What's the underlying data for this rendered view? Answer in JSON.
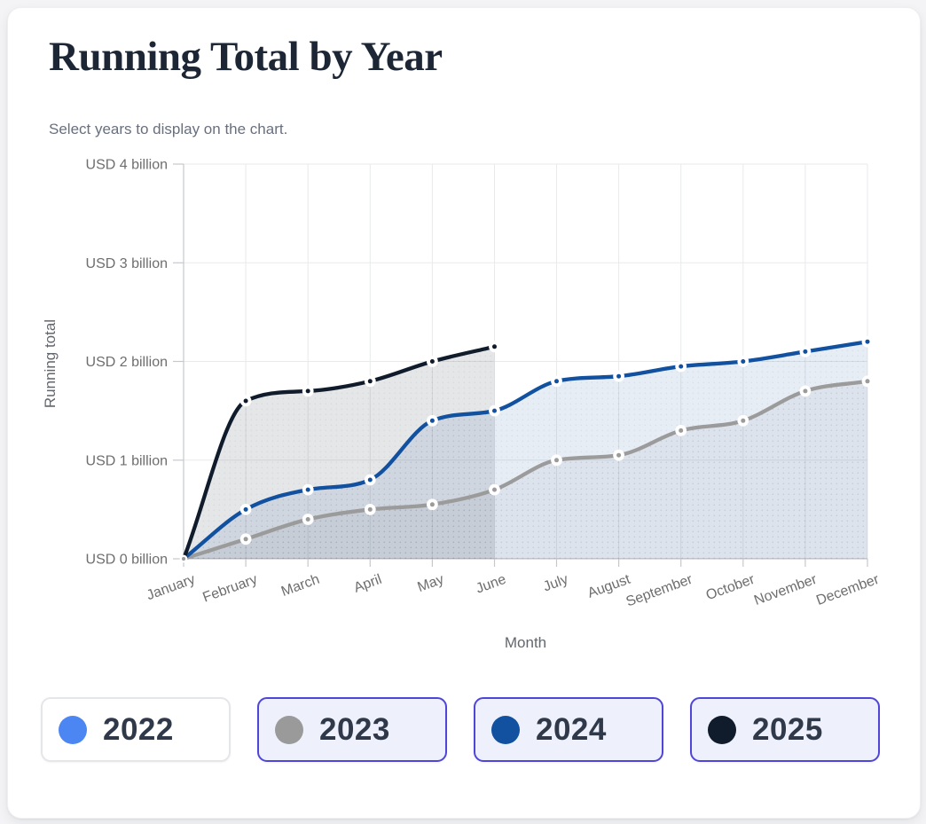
{
  "header": {
    "title": "Running Total by Year",
    "subtitle": "Select years to display on the chart."
  },
  "chart_data": {
    "type": "area",
    "title": "Running Total by Year",
    "x": [
      "January",
      "February",
      "March",
      "April",
      "May",
      "June",
      "July",
      "August",
      "September",
      "October",
      "November",
      "December"
    ],
    "xlabel": "Month",
    "ylabel": "Running total",
    "ylim": [
      0,
      4
    ],
    "yticks": [
      0,
      1,
      2,
      3,
      4
    ],
    "ytick_labels": [
      "USD 0 billion",
      "USD 1 billion",
      "USD 2 billion",
      "USD 3 billion",
      "USD 4 billion"
    ],
    "grid": true,
    "legend_position": "bottom",
    "series": [
      {
        "name": "2022",
        "color": "#4c86f2",
        "fill": "rgba(76,134,242,0.10)",
        "visible": false,
        "values": []
      },
      {
        "name": "2023",
        "color": "#9b9b9b",
        "fill": "rgba(128,134,144,0.09)",
        "visible": true,
        "values": [
          0,
          0.2,
          0.4,
          0.5,
          0.55,
          0.7,
          1.0,
          1.05,
          1.3,
          1.4,
          1.7,
          1.8
        ]
      },
      {
        "name": "2024",
        "color": "#11519f",
        "fill": "rgba(17,81,159,0.10)",
        "visible": true,
        "values": [
          0,
          0.5,
          0.7,
          0.8,
          1.4,
          1.5,
          1.8,
          1.85,
          1.95,
          2.0,
          2.1,
          2.2
        ]
      },
      {
        "name": "2025",
        "color": "#101c2b",
        "fill": "rgba(16,28,43,0.11)",
        "visible": true,
        "values": [
          0,
          1.6,
          1.7,
          1.8,
          2.0,
          2.15
        ]
      }
    ]
  },
  "legend": {
    "selected_border_color": "#4f46d9",
    "unselected_border_color": "#e5e6ea",
    "selected_bg": "#eef1fc",
    "items": [
      {
        "label": "2022",
        "dot_color": "#4c86f2",
        "selected": false
      },
      {
        "label": "2023",
        "dot_color": "#9a9a9a",
        "selected": true
      },
      {
        "label": "2024",
        "dot_color": "#11519f",
        "selected": true
      },
      {
        "label": "2025",
        "dot_color": "#101c2b",
        "selected": true
      }
    ]
  }
}
